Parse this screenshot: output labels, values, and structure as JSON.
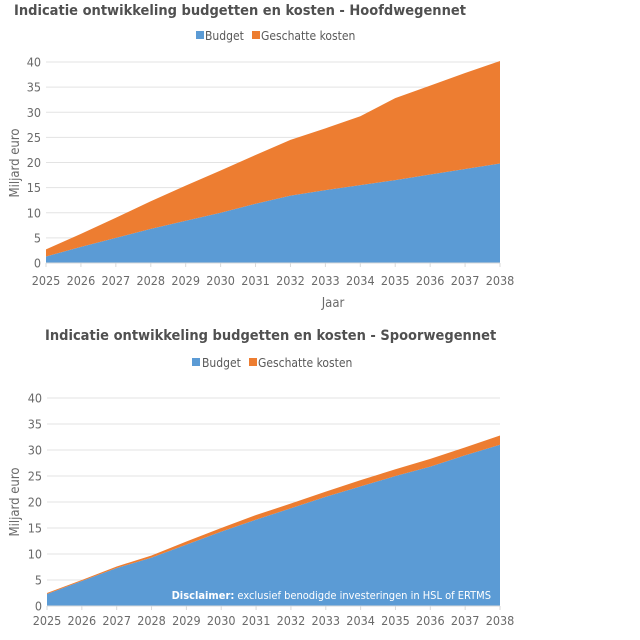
{
  "chart_data": [
    {
      "type": "area",
      "stacked": true,
      "title": "Indicatie ontwikkeling budgetten en kosten - Hoofdwegennet",
      "xlabel": "Jaar",
      "ylabel": "Miljard euro",
      "ylim": [
        0,
        40
      ],
      "yticks": [
        0,
        5,
        10,
        15,
        20,
        25,
        30,
        35,
        40
      ],
      "grid": true,
      "legend": "top",
      "categories": [
        "2025",
        "2026",
        "2027",
        "2028",
        "2029",
        "2030",
        "2031",
        "2032",
        "2033",
        "2034",
        "2035",
        "2036",
        "2037",
        "2038"
      ],
      "series": [
        {
          "name": "Budget",
          "color": "#5b9bd5",
          "values": [
            1.3,
            3.2,
            5.0,
            6.8,
            8.4,
            10.0,
            11.8,
            13.4,
            14.5,
            15.5,
            16.5,
            17.6,
            18.7,
            19.8
          ]
        },
        {
          "name": "Geschatte kosten",
          "color": "#ed7d31",
          "values": [
            1.4,
            2.6,
            4.0,
            5.5,
            7.0,
            8.4,
            9.7,
            11.1,
            12.3,
            13.7,
            16.3,
            17.7,
            19.1,
            20.4
          ]
        }
      ]
    },
    {
      "type": "area",
      "stacked": true,
      "title": "Indicatie ontwikkeling budgetten en kosten - Spoorwegennet",
      "xlabel": "",
      "ylabel": "Miljard euro",
      "ylim": [
        0,
        40
      ],
      "yticks": [
        0,
        5,
        10,
        15,
        20,
        25,
        30,
        35,
        40
      ],
      "grid": true,
      "legend": "top",
      "categories": [
        "2025",
        "2026",
        "2027",
        "2028",
        "2029",
        "2030",
        "2031",
        "2032",
        "2033",
        "2034",
        "2035",
        "2036",
        "2037",
        "2038"
      ],
      "series": [
        {
          "name": "Budget",
          "color": "#5b9bd5",
          "values": [
            2.3,
            4.8,
            7.3,
            9.3,
            11.8,
            14.3,
            16.6,
            18.8,
            21.0,
            23.0,
            25.0,
            26.8,
            29.0,
            31.0
          ]
        },
        {
          "name": "Geschatte kosten",
          "color": "#ed7d31",
          "values": [
            0.2,
            0.2,
            0.3,
            0.4,
            0.6,
            0.7,
            0.9,
            0.9,
            1.0,
            1.2,
            1.3,
            1.5,
            1.5,
            1.8
          ]
        }
      ],
      "annotation": {
        "bold": "Disclaimer:",
        "text": " exclusief benodigde investeringen in HSL of ERTMS"
      }
    }
  ]
}
